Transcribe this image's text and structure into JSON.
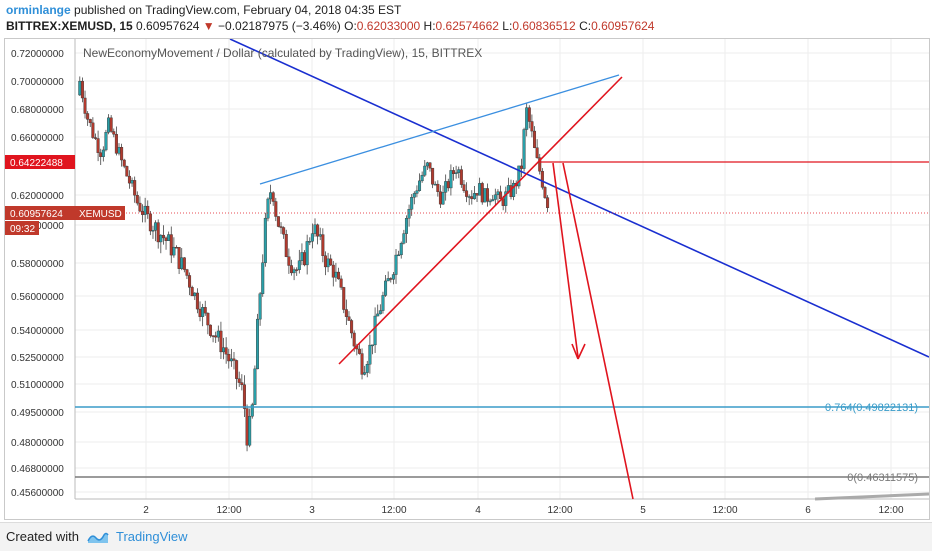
{
  "header": {
    "user": "orminlange",
    "published": "published on TradingView.com, February 04, 2018 04:35 EST",
    "symbol": "BITTREX:XEMUSD, 15",
    "price": "0.60957624",
    "change": "−0.02187975 (−3.46%)",
    "o_label": "O:",
    "o_value": "0.62033000",
    "h_label": "H:",
    "h_value": "0.62574662",
    "l_label": "L:",
    "l_value": "0.60836512",
    "c_label": "C:",
    "c_value": "0.60957624"
  },
  "footer": {
    "created": "Created with",
    "brand": "TradingView"
  },
  "colors": {
    "up": "#2a9fa8",
    "down": "#b03a2e",
    "red": "#e0141e",
    "blue": "#1a2fd0",
    "lightblue": "#3b8fe0",
    "fib": "#3a9cc9",
    "grey": "#7a7a7a"
  },
  "chart_data": {
    "type": "candlestick",
    "title": "NewEconomyMovement / Dollar (calculated by TradingView), 15, BITTREX",
    "y_ticks": [
      "0.72000000",
      "0.70000000",
      "0.68000000",
      "0.66000000",
      "0.62000000",
      "0.60000000",
      "0.58000000",
      "0.56000000",
      "0.54000000",
      "0.52500000",
      "0.51000000",
      "0.49500000",
      "0.48000000",
      "0.46800000",
      "0.45600000"
    ],
    "x_ticks": [
      "2",
      "12:00",
      "3",
      "12:00",
      "4",
      "12:00",
      "5",
      "12:00",
      "6",
      "12:00"
    ],
    "price_labels": [
      {
        "value": "0.64222488"
      },
      {
        "value": "0.60957624",
        "tag": "XEMUSD"
      },
      {
        "value": "09:32"
      }
    ],
    "fib_levels": [
      {
        "label": "0.764(0.49822131)"
      },
      {
        "label": "0(0.46311575)"
      }
    ],
    "path_points": [
      [
        0.0,
        0.69
      ],
      [
        0.02,
        0.7
      ],
      [
        0.05,
        0.675
      ],
      [
        0.08,
        0.66
      ],
      [
        0.11,
        0.65
      ],
      [
        0.14,
        0.668
      ],
      [
        0.17,
        0.655
      ],
      [
        0.2,
        0.64
      ],
      [
        0.23,
        0.628
      ],
      [
        0.26,
        0.615
      ],
      [
        0.3,
        0.605
      ],
      [
        0.34,
        0.598
      ],
      [
        0.38,
        0.592
      ],
      [
        0.42,
        0.585
      ],
      [
        0.46,
        0.575
      ],
      [
        0.5,
        0.56
      ],
      [
        0.54,
        0.548
      ],
      [
        0.58,
        0.538
      ],
      [
        0.62,
        0.53
      ],
      [
        0.66,
        0.518
      ],
      [
        0.7,
        0.505
      ],
      [
        0.72,
        0.48
      ],
      [
        0.74,
        0.498
      ],
      [
        0.76,
        0.54
      ],
      [
        0.78,
        0.58
      ],
      [
        0.8,
        0.61
      ],
      [
        0.82,
        0.627
      ],
      [
        0.84,
        0.605
      ],
      [
        0.87,
        0.59
      ],
      [
        0.9,
        0.58
      ],
      [
        0.93,
        0.575
      ],
      [
        0.96,
        0.585
      ],
      [
        0.99,
        0.6
      ],
      [
        1.02,
        0.59
      ],
      [
        1.05,
        0.58
      ],
      [
        1.08,
        0.575
      ],
      [
        1.11,
        0.56
      ],
      [
        1.14,
        0.545
      ],
      [
        1.17,
        0.53
      ],
      [
        1.2,
        0.52
      ],
      [
        1.23,
        0.53
      ],
      [
        1.26,
        0.548
      ],
      [
        1.29,
        0.562
      ],
      [
        1.32,
        0.575
      ],
      [
        1.35,
        0.59
      ],
      [
        1.38,
        0.605
      ],
      [
        1.41,
        0.62
      ],
      [
        1.44,
        0.632
      ],
      [
        1.47,
        0.64
      ],
      [
        1.5,
        0.625
      ],
      [
        1.53,
        0.618
      ],
      [
        1.56,
        0.63
      ],
      [
        1.59,
        0.64
      ],
      [
        1.62,
        0.628
      ],
      [
        1.65,
        0.62
      ],
      [
        1.68,
        0.625
      ],
      [
        1.71,
        0.618
      ],
      [
        1.74,
        0.622
      ],
      [
        1.77,
        0.615
      ],
      [
        1.8,
        0.62
      ],
      [
        1.83,
        0.625
      ],
      [
        1.86,
        0.64
      ],
      [
        1.88,
        0.68
      ],
      [
        1.9,
        0.665
      ],
      [
        1.92,
        0.645
      ],
      [
        1.94,
        0.635
      ],
      [
        1.96,
        0.62
      ],
      [
        1.98,
        0.61
      ]
    ]
  }
}
